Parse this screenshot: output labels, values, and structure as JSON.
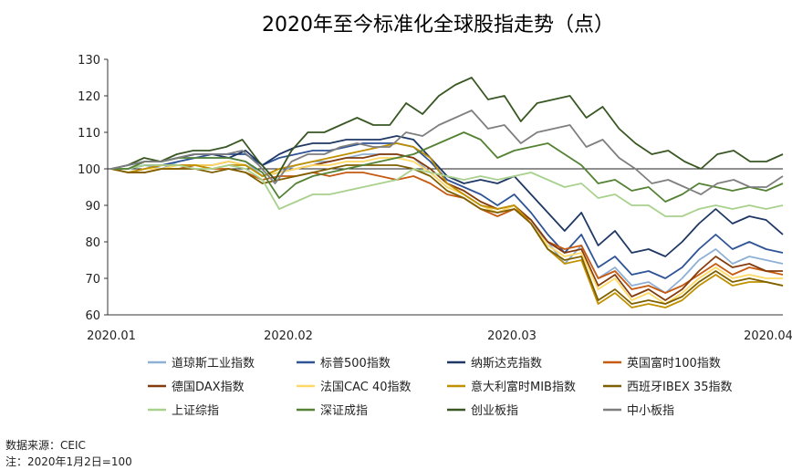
{
  "chart_data": {
    "type": "line",
    "title": "2020年至今标准化全球股指走势（点）",
    "x_labels": [
      "2020.01",
      "2020.02",
      "2020.03",
      "2020.04"
    ],
    "ylim": [
      60,
      130
    ],
    "yticks": [
      60,
      70,
      80,
      90,
      100,
      110,
      120,
      130
    ],
    "reference_line": 100,
    "series": [
      {
        "name": "道琼斯工业指数",
        "color": "#8fb0d6",
        "values": [
          100,
          100,
          101,
          100,
          102,
          103,
          103,
          103,
          102,
          98,
          99,
          101,
          102,
          102,
          103,
          104,
          104,
          104,
          103,
          99,
          95,
          93,
          90,
          88,
          90,
          85,
          80,
          74,
          79,
          70,
          73,
          68,
          69,
          66,
          70,
          75,
          78,
          74,
          76,
          75,
          74
        ]
      },
      {
        "name": "标普500指数",
        "color": "#2f5496",
        "values": [
          100,
          100,
          101,
          101,
          102,
          103,
          104,
          104,
          104,
          101,
          103,
          104,
          105,
          105,
          106,
          107,
          107,
          107,
          106,
          102,
          97,
          95,
          93,
          90,
          93,
          88,
          82,
          77,
          82,
          73,
          76,
          71,
          72,
          70,
          73,
          78,
          82,
          78,
          80,
          78,
          77
        ]
      },
      {
        "name": "纳斯达克指数",
        "color": "#1f3864",
        "values": [
          100,
          101,
          102,
          102,
          103,
          104,
          104,
          103,
          105,
          101,
          104,
          106,
          107,
          107,
          108,
          108,
          108,
          109,
          108,
          103,
          98,
          96,
          97,
          96,
          98,
          93,
          88,
          83,
          88,
          79,
          83,
          77,
          78,
          76,
          80,
          85,
          89,
          85,
          87,
          86,
          82
        ]
      },
      {
        "name": "英国富时100指数",
        "color": "#c55a11",
        "values": [
          100,
          99,
          99,
          100,
          100,
          101,
          100,
          100,
          99,
          97,
          98,
          98,
          99,
          98,
          99,
          99,
          98,
          97,
          98,
          96,
          93,
          92,
          89,
          87,
          89,
          86,
          80,
          78,
          79,
          70,
          72,
          67,
          68,
          66,
          68,
          71,
          74,
          71,
          73,
          72,
          71
        ]
      },
      {
        "name": "德国DAX指数",
        "color": "#843c0c",
        "values": [
          100,
          99,
          100,
          101,
          101,
          101,
          101,
          102,
          101,
          98,
          99,
          100,
          101,
          102,
          103,
          103,
          104,
          104,
          103,
          100,
          96,
          94,
          91,
          89,
          90,
          86,
          80,
          77,
          78,
          68,
          71,
          65,
          67,
          64,
          67,
          72,
          76,
          73,
          74,
          72,
          72
        ]
      },
      {
        "name": "法国CAC 40指数",
        "color": "#ffd966",
        "values": [
          100,
          99,
          100,
          100,
          101,
          101,
          101,
          102,
          101,
          98,
          99,
          100,
          101,
          101,
          102,
          102,
          103,
          103,
          102,
          99,
          95,
          93,
          90,
          88,
          90,
          85,
          79,
          76,
          77,
          67,
          70,
          64,
          66,
          63,
          66,
          70,
          73,
          70,
          71,
          70,
          70
        ]
      },
      {
        "name": "意大利富时MIB指数",
        "color": "#bf9000",
        "values": [
          100,
          99,
          100,
          101,
          101,
          101,
          100,
          101,
          101,
          98,
          100,
          101,
          102,
          103,
          104,
          105,
          106,
          107,
          106,
          103,
          96,
          93,
          90,
          89,
          90,
          85,
          78,
          74,
          75,
          63,
          66,
          62,
          63,
          62,
          64,
          68,
          71,
          68,
          69,
          69,
          68
        ]
      },
      {
        "name": "西班牙IBEX 35指数",
        "color": "#7f6000",
        "values": [
          100,
          99,
          99,
          100,
          100,
          100,
          99,
          100,
          99,
          96,
          97,
          98,
          99,
          100,
          101,
          101,
          101,
          101,
          100,
          98,
          94,
          92,
          89,
          88,
          89,
          85,
          78,
          75,
          76,
          64,
          67,
          63,
          64,
          63,
          65,
          69,
          72,
          69,
          70,
          69,
          68
        ]
      },
      {
        "name": "上证综指",
        "color": "#a9d18e",
        "values": [
          100,
          100,
          101,
          101,
          101,
          100,
          100,
          101,
          100,
          97,
          89,
          91,
          93,
          93,
          94,
          95,
          96,
          97,
          100,
          99,
          98,
          97,
          98,
          97,
          98,
          99,
          97,
          95,
          96,
          92,
          93,
          90,
          90,
          87,
          87,
          89,
          90,
          89,
          90,
          89,
          90
        ]
      },
      {
        "name": "深证成指",
        "color": "#548235",
        "values": [
          100,
          100,
          102,
          102,
          103,
          103,
          103,
          103,
          102,
          99,
          92,
          96,
          98,
          99,
          100,
          101,
          102,
          103,
          104,
          106,
          108,
          110,
          108,
          103,
          105,
          106,
          107,
          104,
          101,
          96,
          97,
          94,
          95,
          91,
          93,
          96,
          95,
          94,
          95,
          94,
          96
        ]
      },
      {
        "name": "创业板指",
        "color": "#385723",
        "values": [
          100,
          101,
          103,
          102,
          104,
          105,
          105,
          106,
          108,
          102,
          97,
          105,
          110,
          110,
          112,
          114,
          112,
          112,
          118,
          115,
          120,
          123,
          125,
          119,
          120,
          113,
          118,
          119,
          120,
          114,
          117,
          111,
          107,
          104,
          105,
          102,
          100,
          104,
          105,
          102,
          102,
          104
        ]
      },
      {
        "name": "中小板指",
        "color": "#7f7f7f",
        "values": [
          100,
          101,
          102,
          102,
          103,
          104,
          104,
          104,
          105,
          101,
          96,
          102,
          104,
          104,
          106,
          107,
          106,
          106,
          110,
          109,
          112,
          114,
          116,
          111,
          112,
          107,
          110,
          111,
          112,
          106,
          108,
          103,
          100,
          96,
          97,
          95,
          93,
          96,
          97,
          95,
          95,
          98
        ]
      }
    ]
  },
  "footer": {
    "source": "数据来源：CEIC",
    "note": "注：2020年1月2日=100"
  }
}
